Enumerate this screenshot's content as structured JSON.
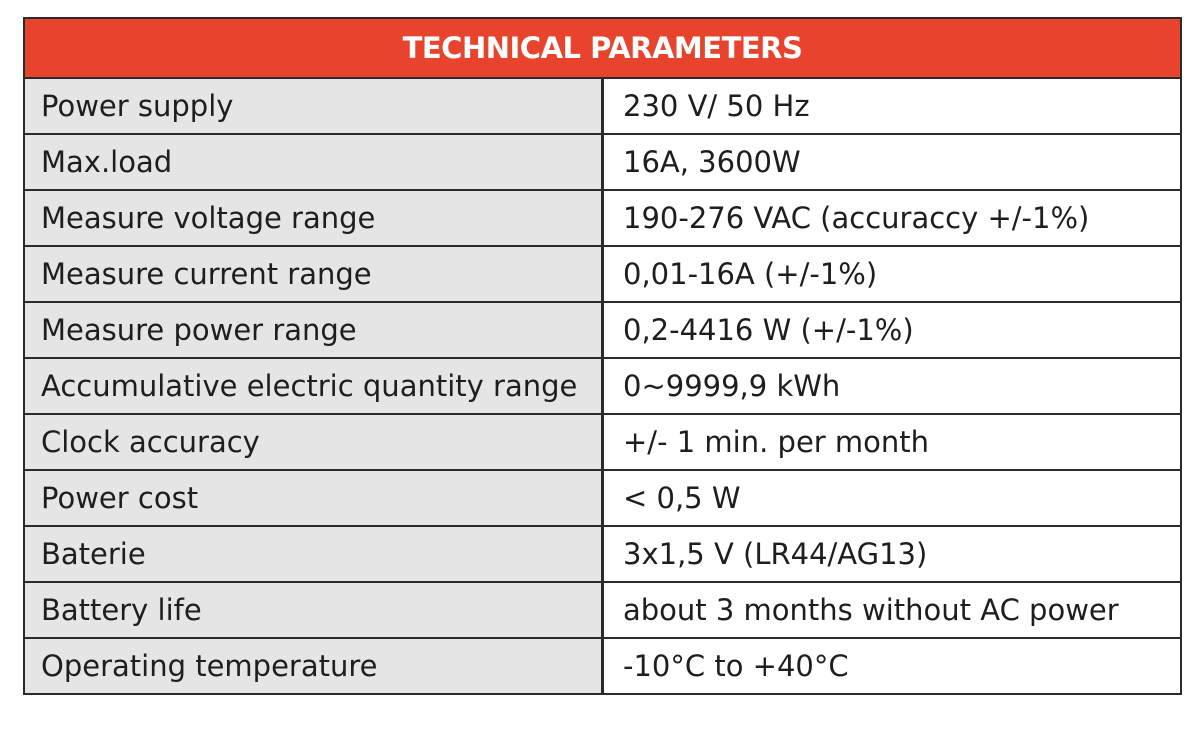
{
  "table": {
    "title": "TECHNICAL PARAMETERS",
    "rows": [
      {
        "parameter": "Power supply",
        "value": "230 V/ 50 Hz"
      },
      {
        "parameter": "Max.load",
        "value": "16A, 3600W"
      },
      {
        "parameter": "Measure voltage range",
        "value": "190-276 VAC (accuraccy +/-1%)"
      },
      {
        "parameter": "Measure current range",
        "value": "0,01-16A (+/-1%)"
      },
      {
        "parameter": "Measure power range",
        "value": "0,2-4416 W (+/-1%)"
      },
      {
        "parameter": "Accumulative electric quantity range",
        "value": "0~9999,9 kWh"
      },
      {
        "parameter": "Clock accuracy",
        "value": "+/- 1 min. per month"
      },
      {
        "parameter": "Power cost",
        "value": "< 0,5 W"
      },
      {
        "parameter": "Baterie",
        "value": "3x1,5 V (LR44/AG13)"
      },
      {
        "parameter": "Battery life",
        "value": "about 3 months without AC power"
      },
      {
        "parameter": "Operating temperature",
        "value": "-10°C to +40°C"
      }
    ]
  },
  "colors": {
    "header_background": "#e8432d",
    "header_text": "#ffffff",
    "parameter_column_background": "#e5e5e5",
    "value_column_background": "#ffffff",
    "border": "#2b2b2b"
  }
}
